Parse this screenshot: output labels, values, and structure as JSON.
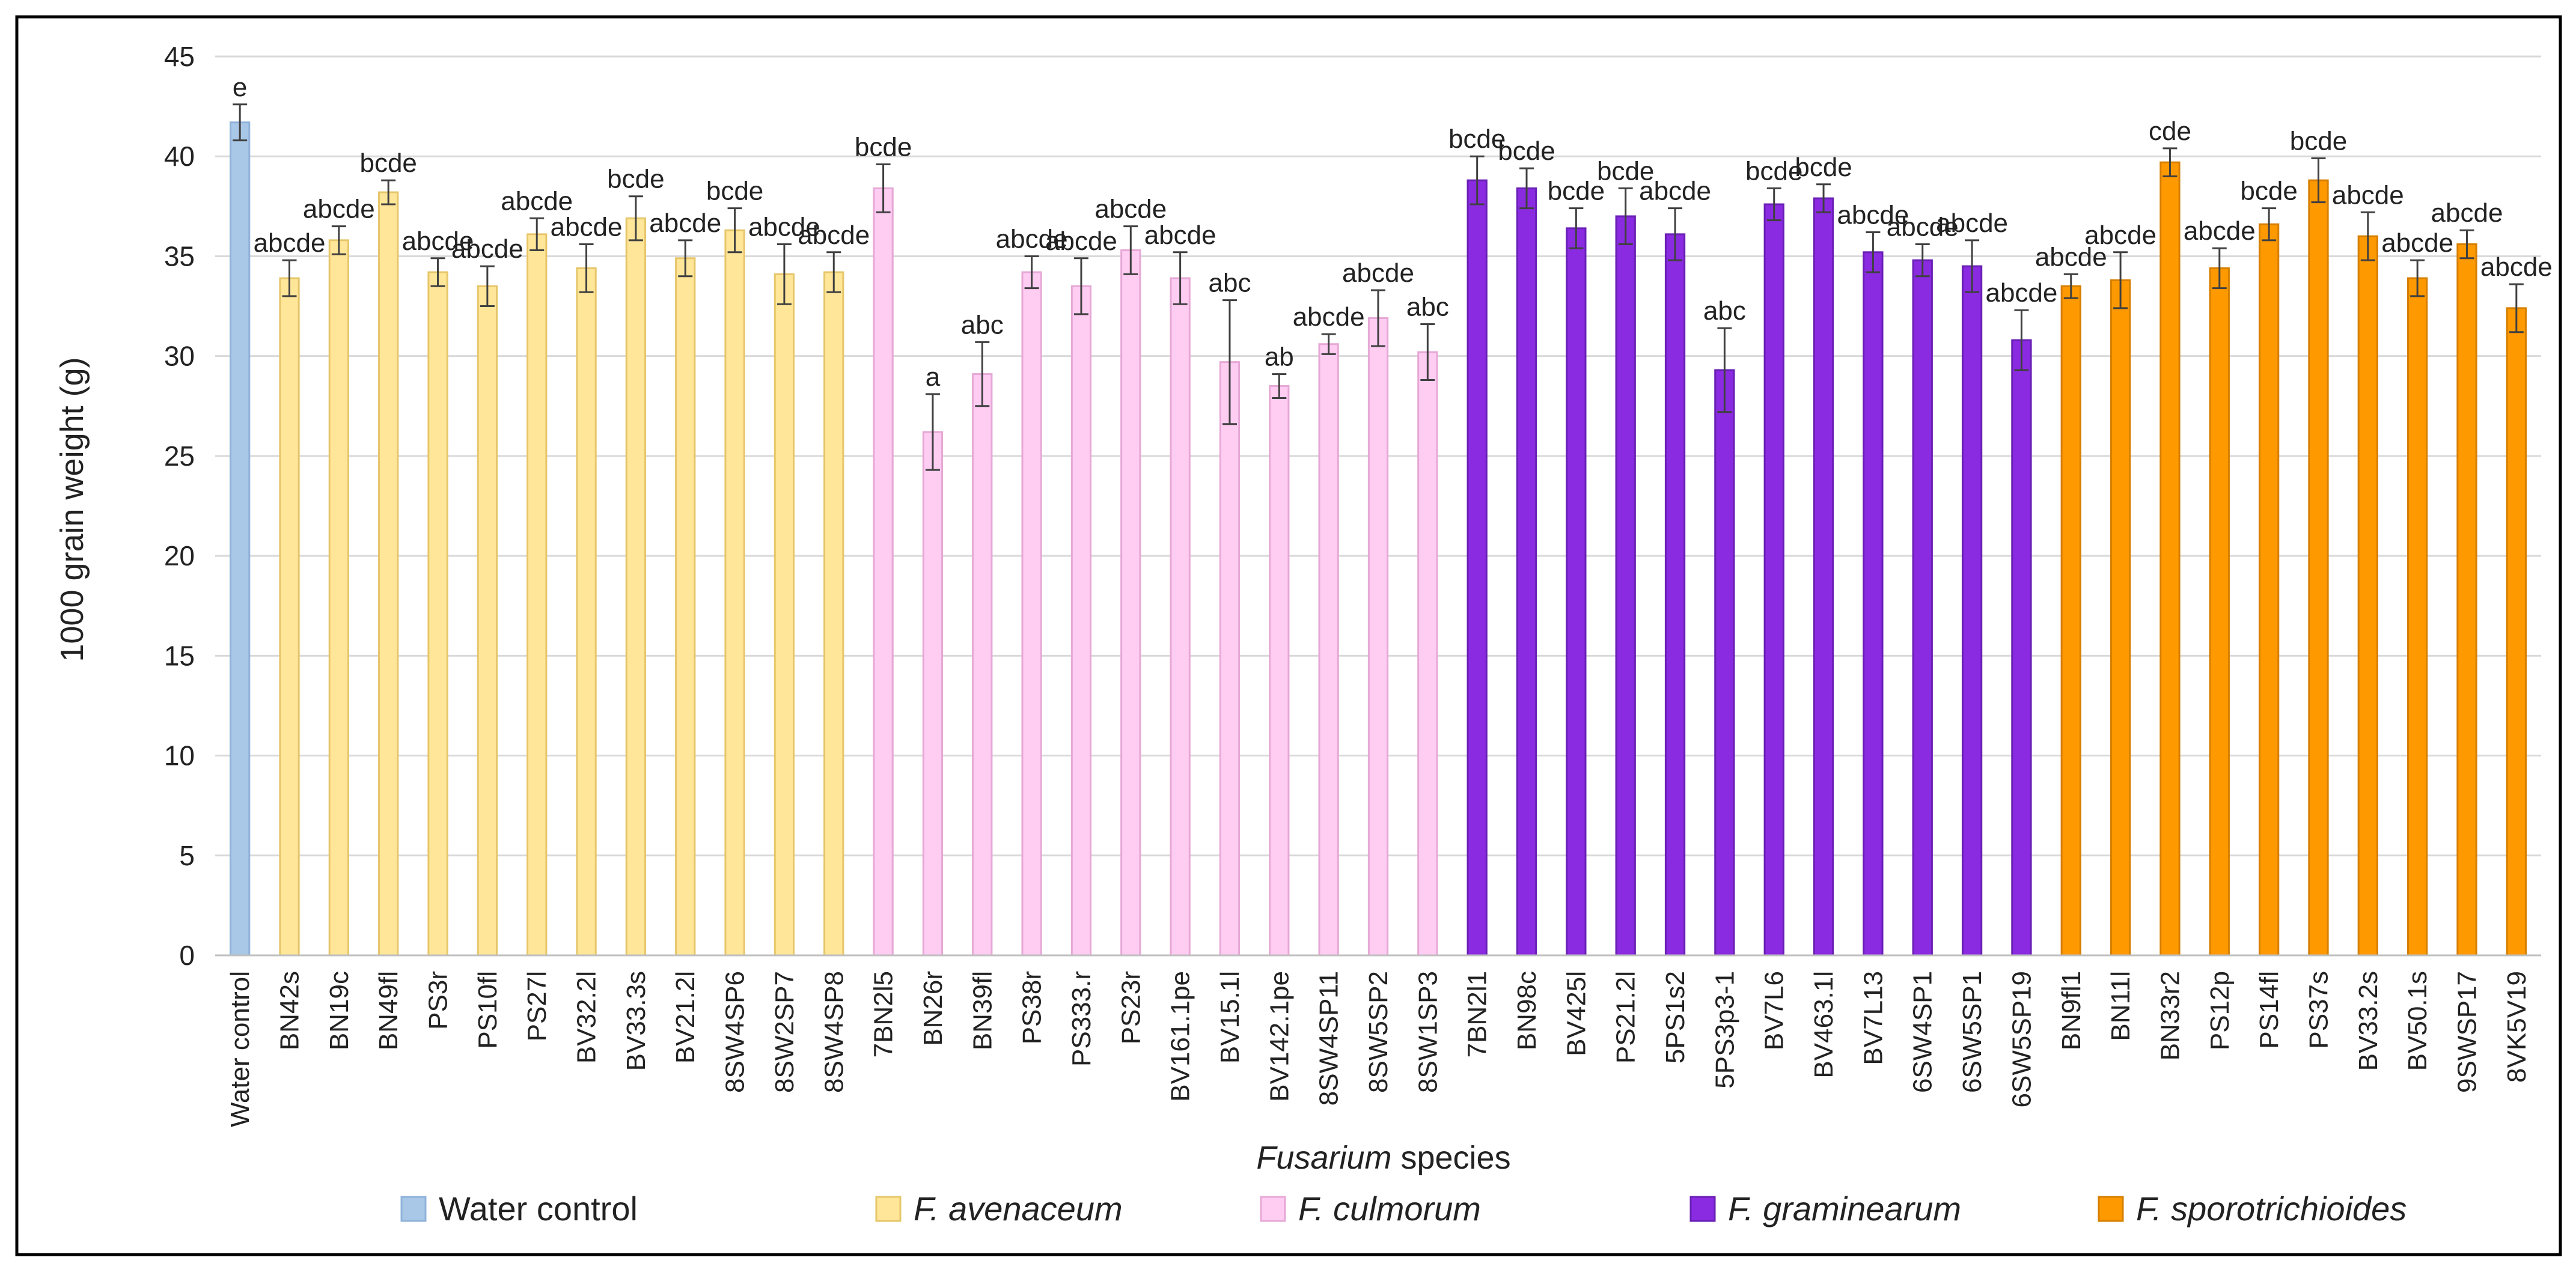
{
  "chart_data": {
    "type": "bar",
    "title": "",
    "ylabel": "1000 grain weight (g)",
    "xlabel_italic": "Fusarium",
    "xlabel_rest": " species",
    "ylim": [
      0,
      45
    ],
    "yticks": [
      0,
      5,
      10,
      15,
      20,
      25,
      30,
      35,
      40,
      45
    ],
    "grid": true,
    "legend_position": "bottom",
    "groups": [
      {
        "key": "water",
        "name": "Water control",
        "italic": false,
        "fill": "#A9C7E7",
        "stroke": "#8FB3DA"
      },
      {
        "key": "aven",
        "name": "F. avenaceum",
        "italic": true,
        "fill": "#FFE699",
        "stroke": "#E6C66A"
      },
      {
        "key": "culm",
        "name": "F. culmorum",
        "italic": true,
        "fill": "#FFCCF2",
        "stroke": "#E6A8D6"
      },
      {
        "key": "gram",
        "name": "F. graminearum",
        "italic": true,
        "fill": "#8A2BE2",
        "stroke": "#6A1FB5"
      },
      {
        "key": "spor",
        "name": "F. sporotrichioides",
        "italic": true,
        "fill": "#FF9900",
        "stroke": "#D67F00"
      }
    ],
    "bars": [
      {
        "category": "Water control",
        "group": "water",
        "value": 41.7,
        "error": 0.9,
        "sig": "e"
      },
      {
        "category": "BN42s",
        "group": "aven",
        "value": 33.9,
        "error": 0.9,
        "sig": "abcde"
      },
      {
        "category": "BN19c",
        "group": "aven",
        "value": 35.8,
        "error": 0.7,
        "sig": "abcde"
      },
      {
        "category": "BN49fl",
        "group": "aven",
        "value": 38.2,
        "error": 0.6,
        "sig": "bcde"
      },
      {
        "category": "PS3r",
        "group": "aven",
        "value": 34.2,
        "error": 0.7,
        "sig": "abcde"
      },
      {
        "category": "PS10fl",
        "group": "aven",
        "value": 33.5,
        "error": 1.0,
        "sig": "abcde"
      },
      {
        "category": "PS27l",
        "group": "aven",
        "value": 36.1,
        "error": 0.8,
        "sig": "abcde"
      },
      {
        "category": "BV32.2l",
        "group": "aven",
        "value": 34.4,
        "error": 1.2,
        "sig": "abcde"
      },
      {
        "category": "BV33.3s",
        "group": "aven",
        "value": 36.9,
        "error": 1.1,
        "sig": "bcde"
      },
      {
        "category": "BV21.2l",
        "group": "aven",
        "value": 34.9,
        "error": 0.9,
        "sig": "abcde"
      },
      {
        "category": "8SW4SP6",
        "group": "aven",
        "value": 36.3,
        "error": 1.1,
        "sig": "bcde"
      },
      {
        "category": "8SW2SP7",
        "group": "aven",
        "value": 34.1,
        "error": 1.5,
        "sig": "abcde"
      },
      {
        "category": "8SW4SP8",
        "group": "aven",
        "value": 34.2,
        "error": 1.0,
        "sig": "abcde"
      },
      {
        "category": "7BN2l5",
        "group": "culm",
        "value": 38.4,
        "error": 1.2,
        "sig": "bcde"
      },
      {
        "category": "BN26r",
        "group": "culm",
        "value": 26.2,
        "error": 1.9,
        "sig": "a"
      },
      {
        "category": "BN39fl",
        "group": "culm",
        "value": 29.1,
        "error": 1.6,
        "sig": "abc"
      },
      {
        "category": "PS38r",
        "group": "culm",
        "value": 34.2,
        "error": 0.8,
        "sig": "abcde"
      },
      {
        "category": "PS333.r",
        "group": "culm",
        "value": 33.5,
        "error": 1.4,
        "sig": "abcde"
      },
      {
        "category": "PS23r",
        "group": "culm",
        "value": 35.3,
        "error": 1.2,
        "sig": "abcde"
      },
      {
        "category": "BV161.1pe",
        "group": "culm",
        "value": 33.9,
        "error": 1.3,
        "sig": "abcde"
      },
      {
        "category": "BV15.1l",
        "group": "culm",
        "value": 29.7,
        "error": 3.1,
        "sig": "abc"
      },
      {
        "category": "BV142.1pe",
        "group": "culm",
        "value": 28.5,
        "error": 0.6,
        "sig": "ab"
      },
      {
        "category": "8SW4SP11",
        "group": "culm",
        "value": 30.6,
        "error": 0.5,
        "sig": "abcde"
      },
      {
        "category": "8SW5SP2",
        "group": "culm",
        "value": 31.9,
        "error": 1.4,
        "sig": "abcde"
      },
      {
        "category": "8SW1SP3",
        "group": "culm",
        "value": 30.2,
        "error": 1.4,
        "sig": "abc"
      },
      {
        "category": "7BN2l1",
        "group": "gram",
        "value": 38.8,
        "error": 1.2,
        "sig": "bcde"
      },
      {
        "category": "BN98c",
        "group": "gram",
        "value": 38.4,
        "error": 1.0,
        "sig": "bcde"
      },
      {
        "category": "BV425l",
        "group": "gram",
        "value": 36.4,
        "error": 1.0,
        "sig": "bcde"
      },
      {
        "category": "PS21.2l",
        "group": "gram",
        "value": 37.0,
        "error": 1.4,
        "sig": "bcde"
      },
      {
        "category": "5PS1s2",
        "group": "gram",
        "value": 36.1,
        "error": 1.3,
        "sig": "abcde"
      },
      {
        "category": "5PS3p3-1",
        "group": "gram",
        "value": 29.3,
        "error": 2.1,
        "sig": "abc"
      },
      {
        "category": "BV7L6",
        "group": "gram",
        "value": 37.6,
        "error": 0.8,
        "sig": "bcde"
      },
      {
        "category": "BV463.1l",
        "group": "gram",
        "value": 37.9,
        "error": 0.7,
        "sig": "bcde"
      },
      {
        "category": "BV7L13",
        "group": "gram",
        "value": 35.2,
        "error": 1.0,
        "sig": "abcde"
      },
      {
        "category": "6SW4SP1",
        "group": "gram",
        "value": 34.8,
        "error": 0.8,
        "sig": "abcde"
      },
      {
        "category": "6SW5SP1",
        "group": "gram",
        "value": 34.5,
        "error": 1.3,
        "sig": "abcde"
      },
      {
        "category": "6SW5SP19",
        "group": "gram",
        "value": 30.8,
        "error": 1.5,
        "sig": "abcde"
      },
      {
        "category": "BN9fl1",
        "group": "spor",
        "value": 33.5,
        "error": 0.6,
        "sig": "abcde"
      },
      {
        "category": "BN11l",
        "group": "spor",
        "value": 33.8,
        "error": 1.4,
        "sig": "abcde"
      },
      {
        "category": "BN33r2",
        "group": "spor",
        "value": 39.7,
        "error": 0.7,
        "sig": "cde"
      },
      {
        "category": "PS12p",
        "group": "spor",
        "value": 34.4,
        "error": 1.0,
        "sig": "abcde"
      },
      {
        "category": "PS14fl",
        "group": "spor",
        "value": 36.6,
        "error": 0.8,
        "sig": "bcde"
      },
      {
        "category": "PS37s",
        "group": "spor",
        "value": 38.8,
        "error": 1.1,
        "sig": "bcde"
      },
      {
        "category": "BV33.2s",
        "group": "spor",
        "value": 36.0,
        "error": 1.2,
        "sig": "abcde"
      },
      {
        "category": "BV50.1s",
        "group": "spor",
        "value": 33.9,
        "error": 0.9,
        "sig": "abcde"
      },
      {
        "category": "9SWSP17",
        "group": "spor",
        "value": 35.6,
        "error": 0.7,
        "sig": "abcde"
      },
      {
        "category": "8VK5V19",
        "group": "spor",
        "value": 32.4,
        "error": 1.2,
        "sig": "abcde"
      }
    ]
  }
}
